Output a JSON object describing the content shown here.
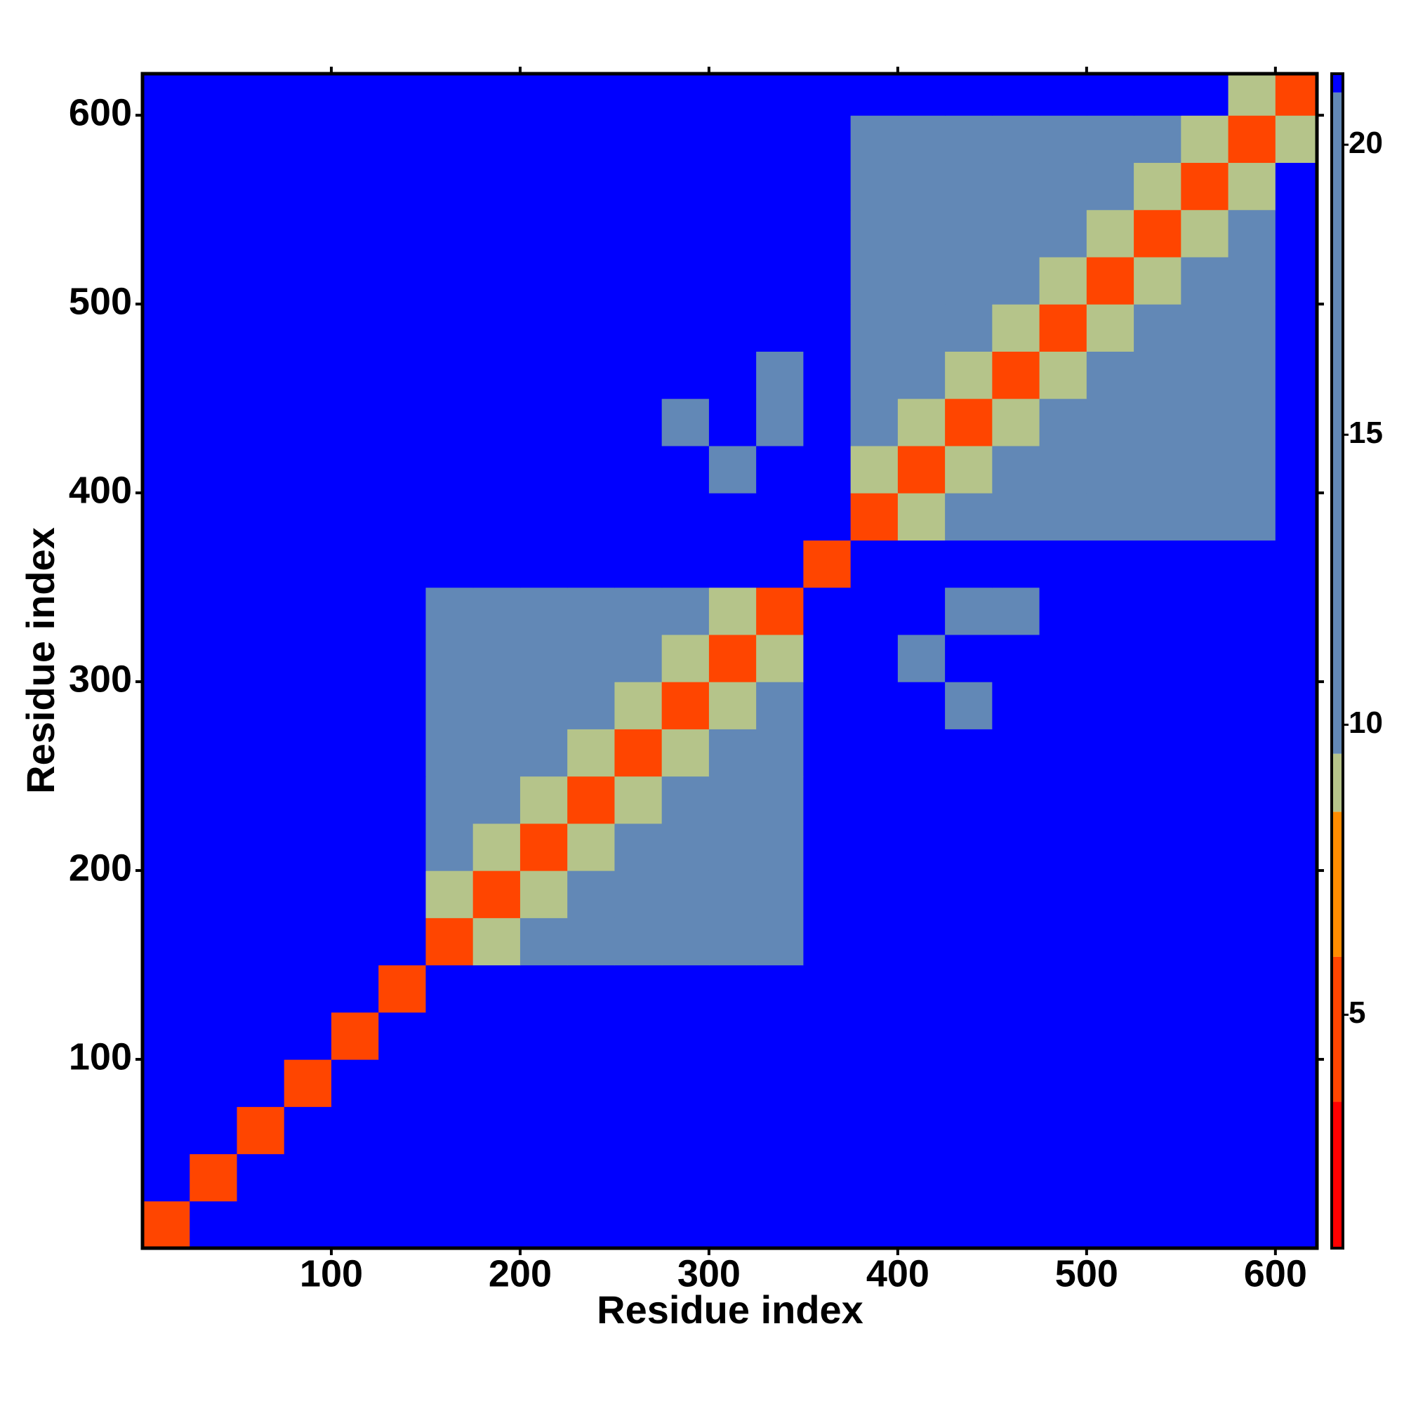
{
  "chart_data": {
    "type": "heatmap",
    "x_label": "Residue index",
    "y_label": "Residue index",
    "xlim": [
      0,
      622
    ],
    "ylim": [
      0,
      622
    ],
    "xticks": [
      100,
      200,
      300,
      400,
      500,
      600
    ],
    "yticks": [
      100,
      200,
      300,
      400,
      500,
      600
    ],
    "x_bins": [
      0,
      25,
      50,
      75,
      100,
      125,
      150,
      175,
      200,
      225,
      250,
      275,
      300,
      325,
      350,
      375,
      400,
      425,
      450,
      475,
      500,
      525,
      550,
      575,
      600,
      622
    ],
    "y_bins": [
      0,
      25,
      50,
      75,
      100,
      125,
      150,
      175,
      200,
      225,
      250,
      275,
      300,
      325,
      350,
      375,
      400,
      425,
      450,
      475,
      500,
      525,
      550,
      575,
      600,
      622
    ],
    "z": [
      [
        4,
        21.2,
        21.2,
        21.2,
        21.2,
        21.2,
        21.2,
        21.2,
        21.2,
        21.2,
        21.2,
        21.2,
        21.2,
        21.2,
        21.2,
        21.2,
        21.2,
        21.2,
        21.2,
        21.2,
        21.2,
        21.2,
        21.2,
        21.2,
        21.2
      ],
      [
        21.2,
        4,
        21.2,
        21.2,
        21.2,
        21.2,
        21.2,
        21.2,
        21.2,
        21.2,
        21.2,
        21.2,
        21.2,
        21.2,
        21.2,
        21.2,
        21.2,
        21.2,
        21.2,
        21.2,
        21.2,
        21.2,
        21.2,
        21.2,
        21.2
      ],
      [
        21.2,
        21.2,
        4,
        21.2,
        21.2,
        21.2,
        21.2,
        21.2,
        21.2,
        21.2,
        21.2,
        21.2,
        21.2,
        21.2,
        21.2,
        21.2,
        21.2,
        21.2,
        21.2,
        21.2,
        21.2,
        21.2,
        21.2,
        21.2,
        21.2
      ],
      [
        21.2,
        21.2,
        21.2,
        4,
        21.2,
        21.2,
        21.2,
        21.2,
        21.2,
        21.2,
        21.2,
        21.2,
        21.2,
        21.2,
        21.2,
        21.2,
        21.2,
        21.2,
        21.2,
        21.2,
        21.2,
        21.2,
        21.2,
        21.2,
        21.2
      ],
      [
        21.2,
        21.2,
        21.2,
        21.2,
        4,
        21.2,
        21.2,
        21.2,
        21.2,
        21.2,
        21.2,
        21.2,
        21.2,
        21.2,
        21.2,
        21.2,
        21.2,
        21.2,
        21.2,
        21.2,
        21.2,
        21.2,
        21.2,
        21.2,
        21.2
      ],
      [
        21.2,
        21.2,
        21.2,
        21.2,
        21.2,
        4,
        21.2,
        21.2,
        21.2,
        21.2,
        21.2,
        21.2,
        21.2,
        21.2,
        21.2,
        21.2,
        21.2,
        21.2,
        21.2,
        21.2,
        21.2,
        21.2,
        21.2,
        21.2,
        21.2
      ],
      [
        21.2,
        21.2,
        21.2,
        21.2,
        21.2,
        21.2,
        4,
        9,
        15,
        15,
        15,
        15,
        15,
        15,
        21.2,
        21.2,
        21.2,
        21.2,
        21.2,
        21.2,
        21.2,
        21.2,
        21.2,
        21.2,
        21.2
      ],
      [
        21.2,
        21.2,
        21.2,
        21.2,
        21.2,
        21.2,
        9,
        4,
        9,
        15,
        15,
        15,
        15,
        15,
        21.2,
        21.2,
        21.2,
        21.2,
        21.2,
        21.2,
        21.2,
        21.2,
        21.2,
        21.2,
        21.2
      ],
      [
        21.2,
        21.2,
        21.2,
        21.2,
        21.2,
        21.2,
        15,
        9,
        4,
        9,
        15,
        15,
        15,
        15,
        21.2,
        21.2,
        21.2,
        21.2,
        21.2,
        21.2,
        21.2,
        21.2,
        21.2,
        21.2,
        21.2
      ],
      [
        21.2,
        21.2,
        21.2,
        21.2,
        21.2,
        21.2,
        15,
        15,
        9,
        4,
        9,
        15,
        15,
        15,
        21.2,
        21.2,
        21.2,
        21.2,
        21.2,
        21.2,
        21.2,
        21.2,
        21.2,
        21.2,
        21.2
      ],
      [
        21.2,
        21.2,
        21.2,
        21.2,
        21.2,
        21.2,
        15,
        15,
        15,
        9,
        4,
        9,
        15,
        15,
        21.2,
        21.2,
        21.2,
        21.2,
        21.2,
        21.2,
        21.2,
        21.2,
        21.2,
        21.2,
        21.2
      ],
      [
        21.2,
        21.2,
        21.2,
        21.2,
        21.2,
        21.2,
        15,
        15,
        15,
        15,
        9,
        4,
        9,
        15,
        21.2,
        21.2,
        21.2,
        19.8,
        21.2,
        21.2,
        21.2,
        21.2,
        21.2,
        21.2,
        21.2
      ],
      [
        21.2,
        21.2,
        21.2,
        21.2,
        21.2,
        21.2,
        15,
        15,
        15,
        15,
        15,
        9,
        4,
        9,
        21.2,
        21.2,
        19.8,
        21.2,
        21.2,
        21.2,
        21.2,
        21.2,
        21.2,
        21.2,
        21.2
      ],
      [
        21.2,
        21.2,
        21.2,
        21.2,
        21.2,
        21.2,
        15,
        15,
        15,
        15,
        15,
        15,
        9,
        4,
        21.2,
        21.2,
        21.2,
        19.8,
        19.8,
        21.2,
        21.2,
        21.2,
        21.2,
        21.2,
        21.2
      ],
      [
        21.2,
        21.2,
        21.2,
        21.2,
        21.2,
        21.2,
        21.2,
        21.2,
        21.2,
        21.2,
        21.2,
        21.2,
        21.2,
        21.2,
        4,
        21.2,
        21.2,
        21.2,
        21.2,
        21.2,
        21.2,
        21.2,
        21.2,
        21.2,
        21.2
      ],
      [
        21.2,
        21.2,
        21.2,
        21.2,
        21.2,
        21.2,
        21.2,
        21.2,
        21.2,
        21.2,
        21.2,
        21.2,
        21.2,
        21.2,
        21.2,
        4,
        9,
        15,
        15,
        15,
        15,
        15,
        15,
        15,
        21.2
      ],
      [
        21.2,
        21.2,
        21.2,
        21.2,
        21.2,
        21.2,
        21.2,
        21.2,
        21.2,
        21.2,
        21.2,
        21.2,
        19.8,
        21.2,
        21.2,
        9,
        4,
        9,
        15,
        15,
        15,
        15,
        15,
        15,
        21.2
      ],
      [
        21.2,
        21.2,
        21.2,
        21.2,
        21.2,
        21.2,
        21.2,
        21.2,
        21.2,
        21.2,
        21.2,
        19.8,
        21.2,
        19.8,
        21.2,
        15,
        9,
        4,
        9,
        15,
        15,
        15,
        15,
        15,
        21.2
      ],
      [
        21.2,
        21.2,
        21.2,
        21.2,
        21.2,
        21.2,
        21.2,
        21.2,
        21.2,
        21.2,
        21.2,
        21.2,
        21.2,
        19.8,
        21.2,
        15,
        15,
        9,
        4,
        9,
        15,
        15,
        15,
        15,
        21.2
      ],
      [
        21.2,
        21.2,
        21.2,
        21.2,
        21.2,
        21.2,
        21.2,
        21.2,
        21.2,
        21.2,
        21.2,
        21.2,
        21.2,
        21.2,
        21.2,
        15,
        15,
        15,
        9,
        4,
        9,
        15,
        15,
        15,
        21.2
      ],
      [
        21.2,
        21.2,
        21.2,
        21.2,
        21.2,
        21.2,
        21.2,
        21.2,
        21.2,
        21.2,
        21.2,
        21.2,
        21.2,
        21.2,
        21.2,
        15,
        15,
        15,
        15,
        9,
        4,
        9,
        15,
        15,
        21.2
      ],
      [
        21.2,
        21.2,
        21.2,
        21.2,
        21.2,
        21.2,
        21.2,
        21.2,
        21.2,
        21.2,
        21.2,
        21.2,
        21.2,
        21.2,
        21.2,
        15,
        15,
        15,
        15,
        15,
        9,
        4,
        9,
        15,
        21.2
      ],
      [
        21.2,
        21.2,
        21.2,
        21.2,
        21.2,
        21.2,
        21.2,
        21.2,
        21.2,
        21.2,
        21.2,
        21.2,
        21.2,
        21.2,
        21.2,
        15,
        15,
        15,
        15,
        15,
        15,
        9,
        4,
        9,
        21.2
      ],
      [
        21.2,
        21.2,
        21.2,
        21.2,
        21.2,
        21.2,
        21.2,
        21.2,
        21.2,
        21.2,
        21.2,
        21.2,
        21.2,
        21.2,
        21.2,
        15,
        15,
        15,
        15,
        15,
        15,
        15,
        9,
        4,
        9
      ],
      [
        21.2,
        21.2,
        21.2,
        21.2,
        21.2,
        21.2,
        21.2,
        21.2,
        21.2,
        21.2,
        21.2,
        21.2,
        21.2,
        21.2,
        21.2,
        21.2,
        21.2,
        21.2,
        21.2,
        21.2,
        21.2,
        21.2,
        21.2,
        9,
        4
      ]
    ],
    "clim": [
      1,
      21.2
    ],
    "cticks": [
      5,
      10,
      15,
      20
    ],
    "color_steps": [
      {
        "max": 3.5,
        "color": "#ff0000"
      },
      {
        "max": 6,
        "color": "#ff4500"
      },
      {
        "max": 8.5,
        "color": "#ff8c00"
      },
      {
        "max": 9.5,
        "color": "#b5c48a"
      },
      {
        "max": 20.9,
        "color": "#6288b6"
      },
      {
        "max": 21.2,
        "color": "#0000ff"
      }
    ]
  }
}
